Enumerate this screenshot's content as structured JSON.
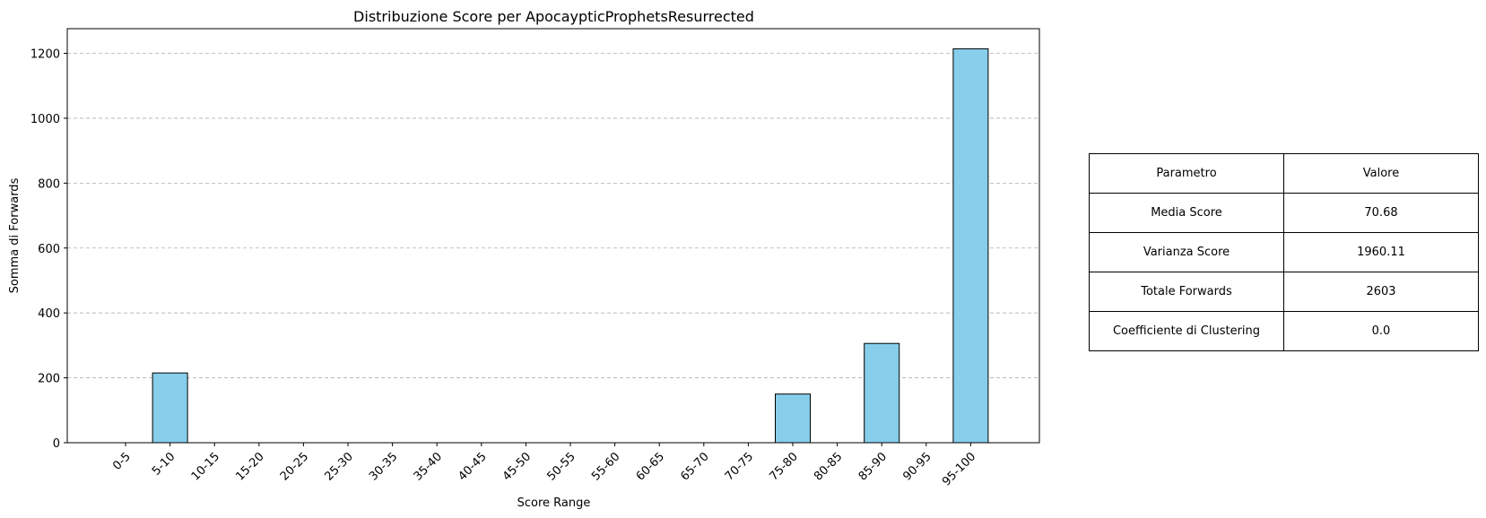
{
  "chart_data": {
    "type": "bar",
    "title": "Distribuzione Score per ApocaypticProphetsResurrected",
    "xlabel": "Score Range",
    "ylabel": "Somma di Forwards",
    "categories": [
      "0-5",
      "5-10",
      "10-15",
      "15-20",
      "20-25",
      "25-30",
      "30-35",
      "35-40",
      "40-45",
      "45-50",
      "50-55",
      "55-60",
      "60-65",
      "65-70",
      "70-75",
      "75-80",
      "80-85",
      "85-90",
      "90-95",
      "95-100"
    ],
    "values": [
      0,
      215,
      0,
      0,
      0,
      0,
      0,
      0,
      0,
      0,
      0,
      0,
      0,
      0,
      0,
      150,
      0,
      306,
      0,
      1214
    ],
    "yticks": [
      0,
      200,
      400,
      600,
      800,
      1000,
      1200
    ],
    "ylim": [
      0,
      1276
    ],
    "grid": "y-dashed",
    "bar_color": "#87CEEB",
    "edge_color": "#000000",
    "legend": "none"
  },
  "table": {
    "header": {
      "param": "Parametro",
      "value": "Valore"
    },
    "rows": [
      {
        "param": "Media Score",
        "value": "70.68"
      },
      {
        "param": "Varianza Score",
        "value": "1960.11"
      },
      {
        "param": "Totale Forwards",
        "value": "2603"
      },
      {
        "param": "Coefficiente di Clustering",
        "value": "0.0"
      }
    ]
  }
}
